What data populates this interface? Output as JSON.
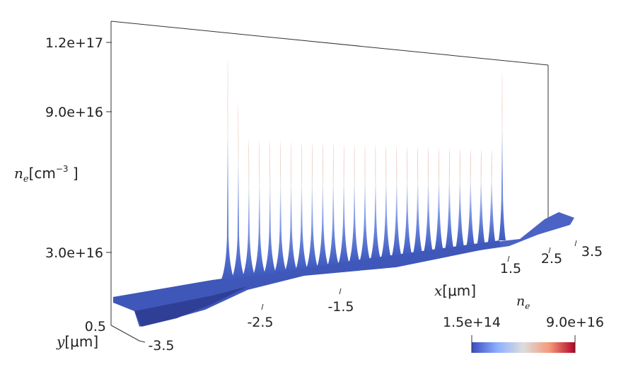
{
  "chart_data": {
    "type": "surface3d",
    "z_axis": {
      "label_symbol": "n",
      "label_sub": "e",
      "label_unit": "[cm",
      "label_exp": "−3",
      "label_close": " ]",
      "ticks": [
        "1.2e+17",
        "9.0e+16",
        "3.0e+16",
        "0.5"
      ]
    },
    "x_axis": {
      "label_symbol": "x",
      "label_unit": "[μm]",
      "ticks": [
        "-2.5",
        "-1.5",
        "1.5",
        "2.5",
        "3.5"
      ]
    },
    "y_axis": {
      "label_symbol": "y",
      "label_unit": "[μm]",
      "ticks": [
        "-3.5"
      ]
    },
    "colorbar": {
      "title_symbol": "n",
      "title_sub": "e",
      "min_label": "1.5e+14",
      "max_label": "9.0e+16",
      "colors": [
        "#3b4cc0",
        "#8db0fe",
        "#dddddd",
        "#f49a7b",
        "#b40426"
      ]
    },
    "peak_count": 27,
    "surface_color": "#3f5bbf"
  }
}
